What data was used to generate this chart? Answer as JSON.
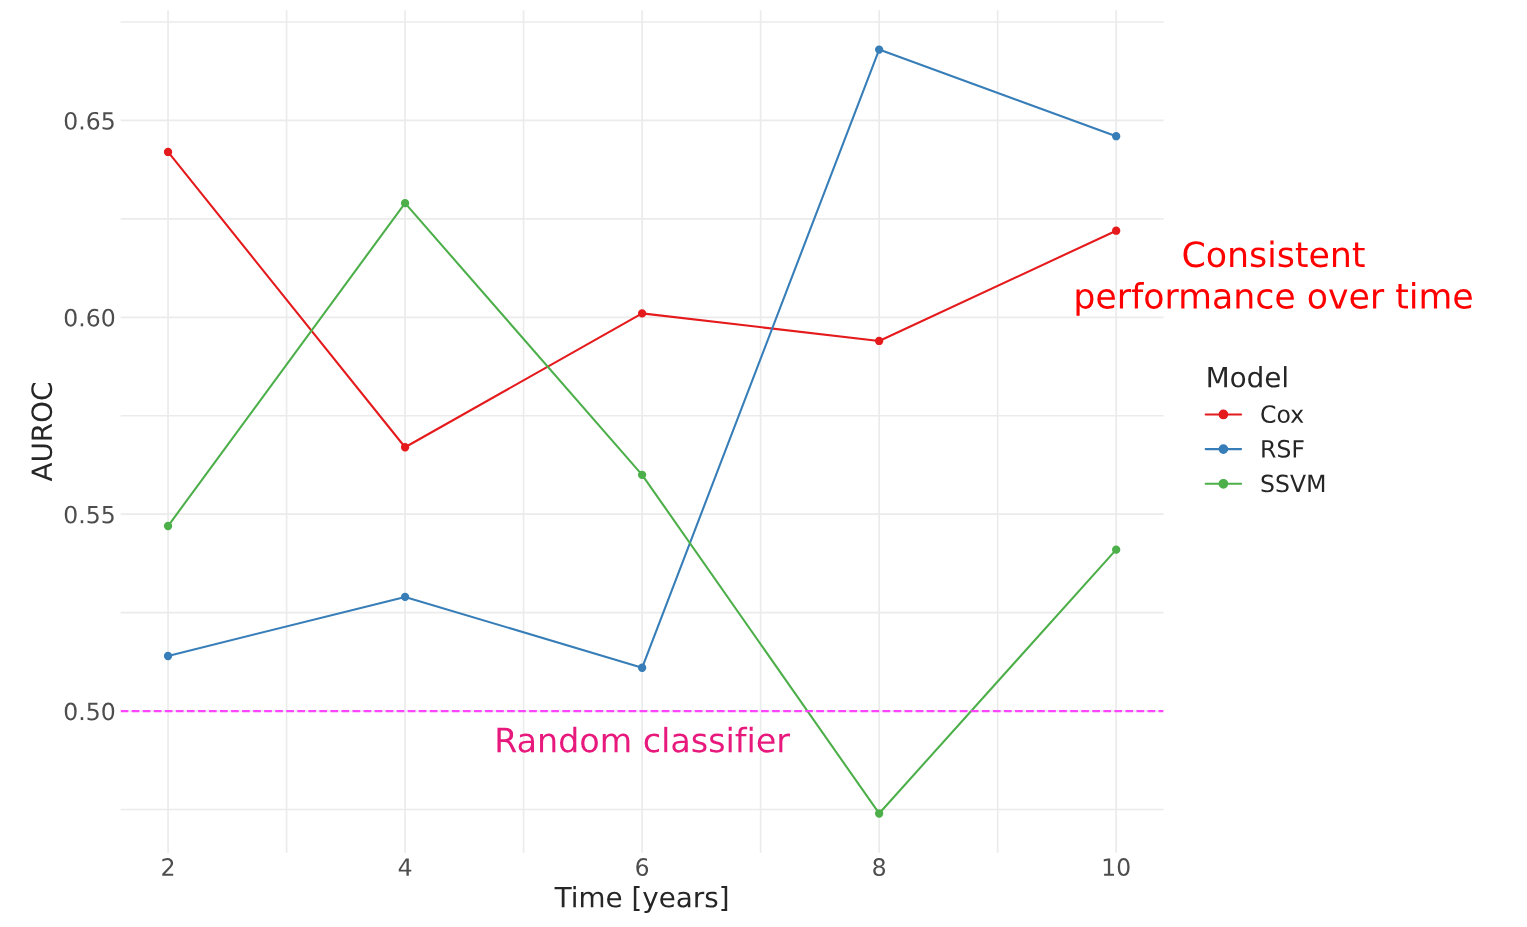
{
  "chart_data": {
    "type": "line",
    "xlabel": "Time [years]",
    "ylabel": "AUROC",
    "legend_title": "Model",
    "x": [
      2,
      4,
      6,
      8,
      10
    ],
    "series": [
      {
        "name": "Cox",
        "color": "#e41a1c",
        "values": [
          0.642,
          0.567,
          0.601,
          0.594,
          0.622
        ]
      },
      {
        "name": "RSF",
        "color": "#377eb8",
        "values": [
          0.514,
          0.529,
          0.511,
          0.668,
          0.646
        ]
      },
      {
        "name": "SSVM",
        "color": "#4daf4a",
        "values": [
          0.547,
          0.629,
          0.56,
          0.474,
          0.541
        ]
      }
    ],
    "xlim": [
      1.6,
      10.4
    ],
    "ylim": [
      0.464,
      0.678
    ],
    "xticks": [
      2,
      {
        "value": 3,
        "label": null
      },
      4,
      {
        "value": 5,
        "label": null
      },
      6,
      {
        "value": 7,
        "label": null
      },
      8,
      {
        "value": 9,
        "label": null
      },
      10
    ],
    "yticks": [
      {
        "value": 0.475,
        "label": null
      },
      {
        "value": 0.5,
        "label": "0.50"
      },
      {
        "value": 0.525,
        "label": null
      },
      {
        "value": 0.55,
        "label": "0.55"
      },
      {
        "value": 0.575,
        "label": null
      },
      {
        "value": 0.6,
        "label": "0.60"
      },
      {
        "value": 0.625,
        "label": null
      },
      {
        "value": 0.65,
        "label": "0.65"
      },
      {
        "value": 0.675,
        "label": null
      }
    ],
    "ref_lines": [
      {
        "axis": "y",
        "value": 0.5,
        "label": "Random classifier",
        "color": "#ff44ff",
        "line_style": "dashed"
      }
    ],
    "annotations": [
      "Consistent\nperformance over time"
    ],
    "grid": true,
    "legend": "right",
    "marker": "circle",
    "line_style": "solid"
  }
}
